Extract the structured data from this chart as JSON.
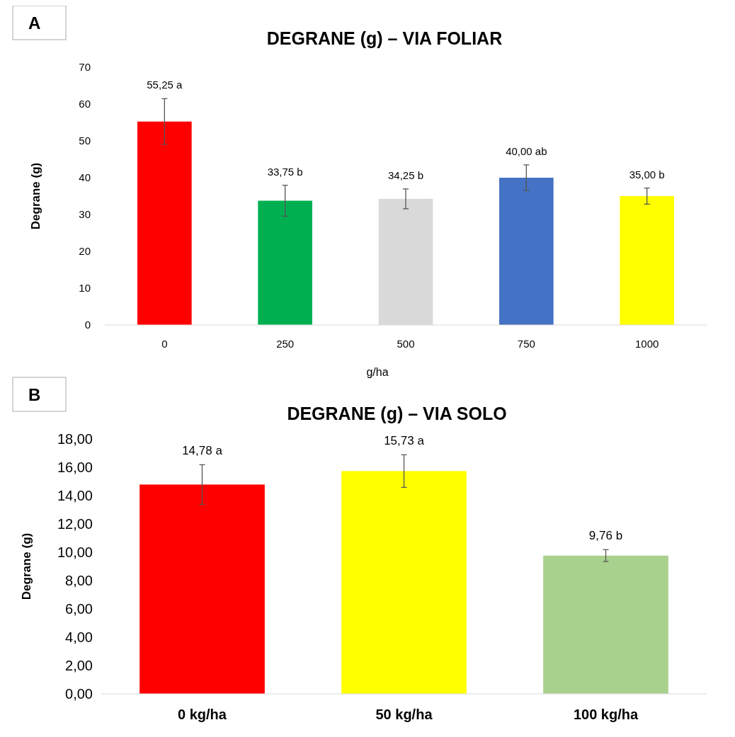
{
  "chart_data": [
    {
      "type": "bar",
      "title": "DEGRANE (g) – VIA FOLIAR",
      "xlabel": "g/ha",
      "ylabel": "Degrane (g)",
      "annotations": [
        "A"
      ],
      "categories": [
        "0",
        "250",
        "500",
        "750",
        "1000"
      ],
      "values": [
        55.25,
        33.75,
        34.25,
        40.0,
        35.0
      ],
      "colors": [
        "#ff0000",
        "#00b050",
        "#d9d9d9",
        "#4472c4",
        "#ffff00"
      ],
      "errors": [
        6.2,
        4.2,
        2.7,
        3.5,
        2.2
      ],
      "value_labels": [
        "55,25 a",
        "33,75 b",
        "34,25 b",
        "40,00 ab",
        "35,00 b"
      ],
      "ylim": [
        0,
        70
      ],
      "yticks": [
        0,
        10,
        20,
        30,
        40,
        50,
        60,
        70
      ]
    },
    {
      "type": "bar",
      "title": "DEGRANE (g) – VIA SOLO",
      "ylabel": "Degrane (g)",
      "annotations": [
        "B"
      ],
      "categories": [
        "0 kg/ha",
        "50 kg/ha",
        "100 kg/ha"
      ],
      "values": [
        14.78,
        15.73,
        9.76
      ],
      "colors": [
        "#ff0000",
        "#ffff00",
        "#a9d18e"
      ],
      "errors": [
        1.4,
        1.15,
        0.42
      ],
      "value_labels": [
        "14,78 a",
        "15,73 a",
        "9,76 b"
      ],
      "ylim": [
        0,
        18
      ],
      "yticks": [
        {
          "value": 0,
          "label": "0,00"
        },
        {
          "value": 2,
          "label": "2,00"
        },
        {
          "value": 4,
          "label": "4,00"
        },
        {
          "value": 6,
          "label": "6,00"
        },
        {
          "value": 8,
          "label": "8,00"
        },
        {
          "value": 10,
          "label": "10,00"
        },
        {
          "value": 12,
          "label": "12,00"
        },
        {
          "value": 14,
          "label": "14,00"
        },
        {
          "value": 16,
          "label": "16,00"
        },
        {
          "value": 18,
          "label": "18,00"
        }
      ]
    }
  ]
}
